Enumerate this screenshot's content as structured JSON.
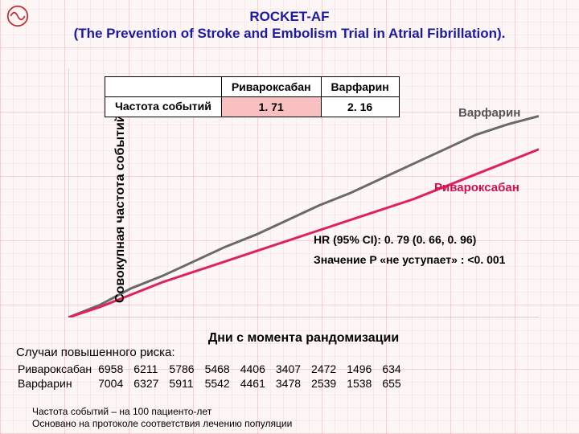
{
  "title_line1": "ROCKET-AF",
  "title_line2": "(The Prevention of Stroke and Embolism Trial in Atrial Fibrillation).",
  "ylabel": "Совокупная частота событий (%)",
  "xlabel": "Дни с момента рандомизации",
  "chart": {
    "type": "line",
    "xlim": [
      0,
      900
    ],
    "ylim": [
      0,
      6
    ],
    "background_color": "#ffffff00",
    "grid_color": "#f0d0d0",
    "series": [
      {
        "name": "Варфарин",
        "color": "#6a6a6a",
        "width": 3,
        "points": [
          [
            0,
            0
          ],
          [
            60,
            0.3
          ],
          [
            120,
            0.7
          ],
          [
            180,
            1.0
          ],
          [
            240,
            1.35
          ],
          [
            300,
            1.7
          ],
          [
            360,
            2.0
          ],
          [
            420,
            2.35
          ],
          [
            480,
            2.7
          ],
          [
            540,
            3.0
          ],
          [
            600,
            3.35
          ],
          [
            660,
            3.7
          ],
          [
            720,
            4.05
          ],
          [
            780,
            4.4
          ],
          [
            840,
            4.65
          ],
          [
            900,
            4.85
          ]
        ]
      },
      {
        "name": "Ривароксабан",
        "color": "#e02060",
        "width": 3,
        "points": [
          [
            0,
            0
          ],
          [
            60,
            0.25
          ],
          [
            120,
            0.55
          ],
          [
            180,
            0.85
          ],
          [
            240,
            1.1
          ],
          [
            300,
            1.35
          ],
          [
            360,
            1.6
          ],
          [
            420,
            1.85
          ],
          [
            480,
            2.1
          ],
          [
            540,
            2.35
          ],
          [
            600,
            2.6
          ],
          [
            660,
            2.85
          ],
          [
            720,
            3.15
          ],
          [
            780,
            3.45
          ],
          [
            840,
            3.75
          ],
          [
            900,
            4.05
          ]
        ]
      }
    ]
  },
  "mini_table": {
    "col_headers": [
      "Ривароксабан",
      "Варфарин"
    ],
    "row_label": "Частота событий",
    "cells": [
      "1. 71",
      "2. 16"
    ],
    "cell_bg_r": "#f8c0c0",
    "cell_bg_w": "#ffffff"
  },
  "line_labels": {
    "warfarin": "Варфарин",
    "rivaroxaban": "Ривароксабан"
  },
  "stats": {
    "hr": "HR (95% CI): 0. 79 (0. 66, 0. 96)",
    "p": "Значение P «не уступает» : <0. 001"
  },
  "risk": {
    "title": "Случаи повышенного риска:",
    "rows": [
      {
        "label": "Ривароксабан",
        "values": [
          "6958",
          "6211",
          "5786",
          "5468",
          "4406",
          "3407",
          "2472",
          "1496",
          "634"
        ]
      },
      {
        "label": "Варфарин",
        "values": [
          "7004",
          "6327",
          "5911",
          "5542",
          "4461",
          "3478",
          "2539",
          "1538",
          "655"
        ]
      }
    ]
  },
  "footnote_l1": "Частота событий – на 100 пациенто-лет",
  "footnote_l2": "Основано на протоколе соответствия лечению популяции",
  "colors": {
    "title": "#1a1aa8",
    "warfarin_label": "#555555",
    "rivaroxaban_label": "#d01050"
  }
}
